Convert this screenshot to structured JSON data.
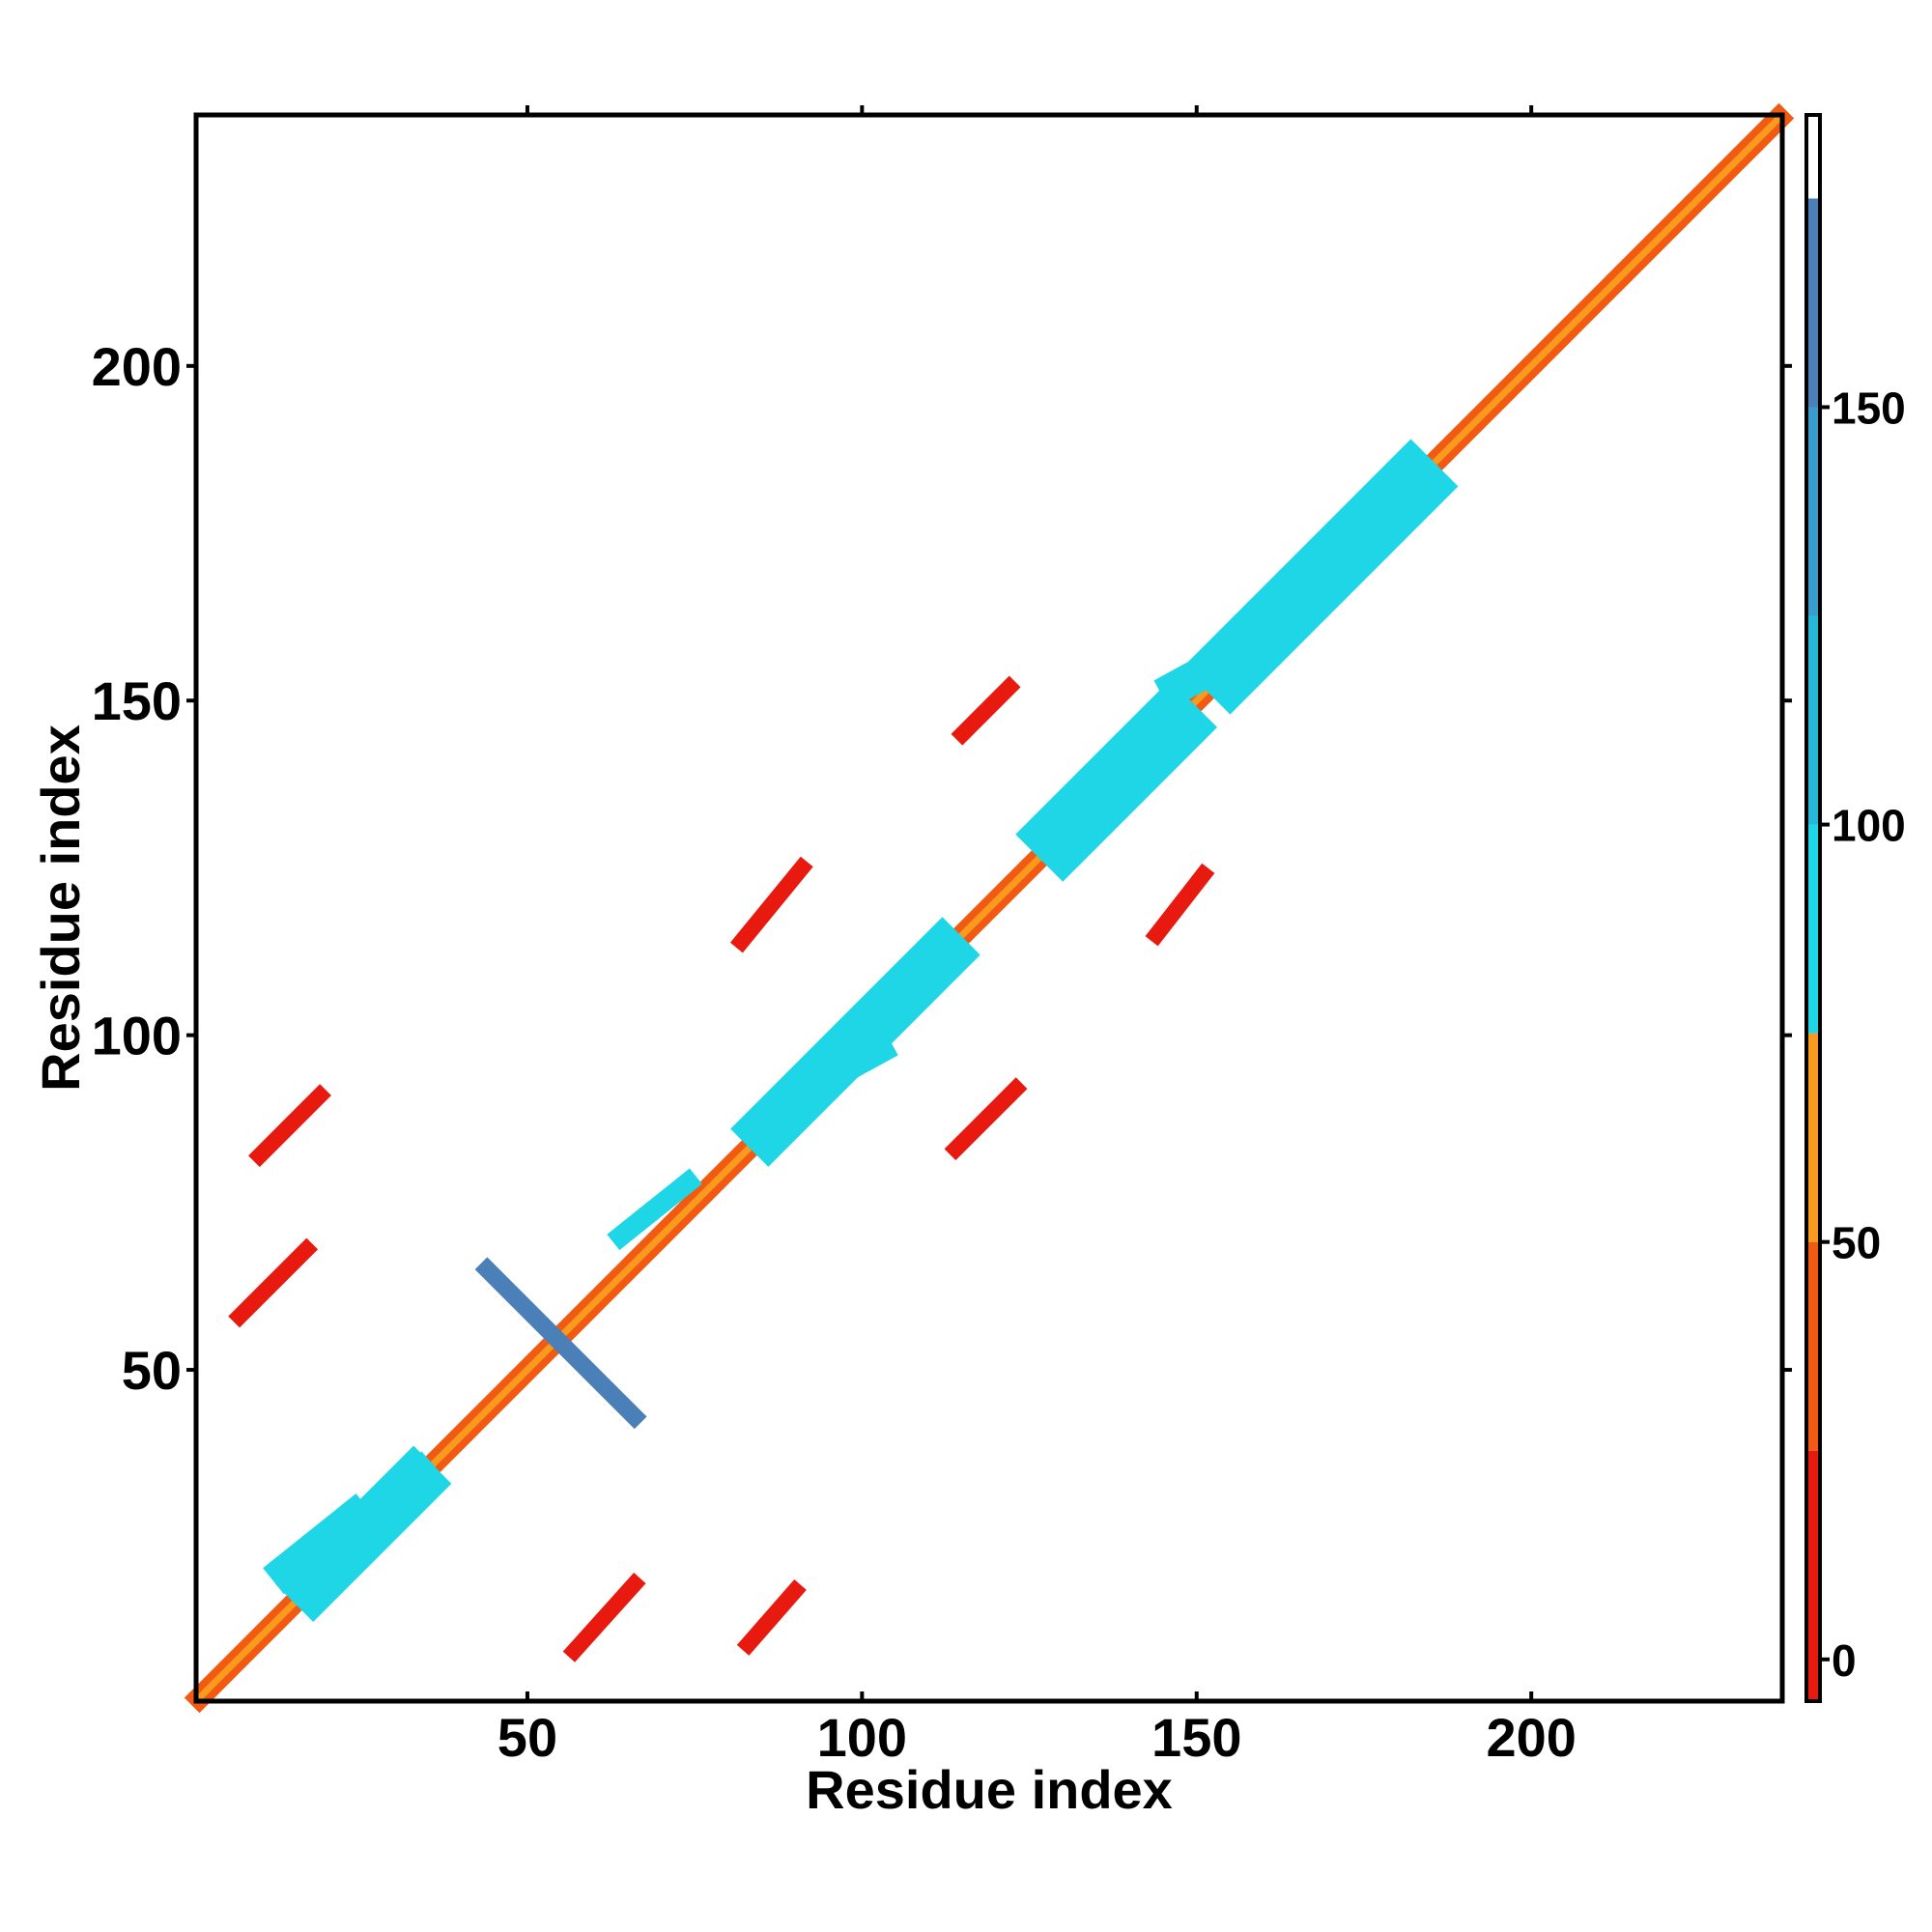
{
  "chart_data": {
    "type": "heatmap",
    "title": "",
    "xlabel": "Residue index",
    "ylabel": "Residue index",
    "xlim": [
      1,
      237
    ],
    "ylim": [
      1,
      237
    ],
    "x_ticks": [
      50,
      100,
      150,
      200
    ],
    "y_ticks": [
      50,
      100,
      150,
      200
    ],
    "x_tick_labels": [
      "50",
      "100",
      "150",
      "200"
    ],
    "y_tick_labels": [
      "50",
      "100",
      "150",
      "200"
    ],
    "grid": false,
    "legend": "none",
    "colorbar": {
      "position": "right",
      "range": [
        -5,
        185
      ],
      "ticks": [
        0,
        50,
        100,
        150
      ],
      "tick_labels": [
        "0",
        "50",
        "100",
        "150"
      ],
      "bands": [
        {
          "from": -5,
          "to": 25,
          "color": "#e8190e"
        },
        {
          "from": 25,
          "to": 50,
          "color": "#f05a12"
        },
        {
          "from": 50,
          "to": 75,
          "color": "#f79a1e"
        },
        {
          "from": 75,
          "to": 100,
          "color": "#1ed6e6"
        },
        {
          "from": 100,
          "to": 125,
          "color": "#25b8d8"
        },
        {
          "from": 125,
          "to": 150,
          "color": "#3a9ccc"
        },
        {
          "from": 150,
          "to": 175,
          "color": "#4a7fb8"
        },
        {
          "from": 175,
          "to": 185,
          "color": "#ffffff"
        }
      ]
    },
    "series": [
      {
        "start": [
          1,
          1
        ],
        "end": [
          237,
          237
        ],
        "half_width": 1.6,
        "value": 30
      },
      {
        "start": [
          1,
          1
        ],
        "end": [
          237,
          237
        ],
        "half_width": 0.5,
        "value": 60
      },
      {
        "start": [
          18,
          18
        ],
        "end": [
          33,
          33
        ],
        "half_width": 4,
        "value": 95
      },
      {
        "start": [
          86,
          86
        ],
        "end": [
          112,
          112
        ],
        "half_width": 4,
        "value": 95
      },
      {
        "start": [
          130,
          130
        ],
        "end": [
          146,
          146
        ],
        "half_width": 5,
        "value": 95
      },
      {
        "start": [
          155,
          155
        ],
        "end": [
          182,
          182
        ],
        "half_width": 5,
        "value": 95
      },
      {
        "start": [
          44,
          65
        ],
        "end": [
          66,
          43
        ],
        "half_width": 1.3,
        "value": 160
      },
      {
        "start": [
          7,
          58
        ],
        "end": [
          17,
          68
        ],
        "half_width": 1.2,
        "value": 20
      },
      {
        "start": [
          10,
          82
        ],
        "end": [
          19,
          91
        ],
        "half_width": 1.2,
        "value": 20
      },
      {
        "start": [
          57,
          8
        ],
        "end": [
          66,
          18
        ],
        "half_width": 1.2,
        "value": 20
      },
      {
        "start": [
          83,
          9
        ],
        "end": [
          90,
          17
        ],
        "half_width": 1.2,
        "value": 20
      },
      {
        "start": [
          82,
          114
        ],
        "end": [
          91,
          125
        ],
        "half_width": 1.2,
        "value": 20
      },
      {
        "start": [
          114,
          83
        ],
        "end": [
          123,
          92
        ],
        "half_width": 1.2,
        "value": 20
      },
      {
        "start": [
          115,
          145
        ],
        "end": [
          122,
          152
        ],
        "half_width": 1.2,
        "value": 20
      },
      {
        "start": [
          144,
          115
        ],
        "end": [
          151,
          124
        ],
        "half_width": 1.2,
        "value": 20
      },
      {
        "start": [
          91,
          92
        ],
        "end": [
          102,
          98
        ],
        "half_width": 2.5,
        "value": 95
      },
      {
        "start": [
          147,
          152
        ],
        "end": [
          158,
          158
        ],
        "half_width": 2.5,
        "value": 95
      },
      {
        "start": [
          136,
          138
        ],
        "end": [
          146,
          148
        ],
        "half_width": 2.5,
        "value": 95
      },
      {
        "start": [
          14,
          20
        ],
        "end": [
          24,
          28
        ],
        "half_width": 2.5,
        "value": 95
      },
      {
        "start": [
          64,
          70
        ],
        "end": [
          74,
          78
        ],
        "half_width": 1.5,
        "value": 95
      },
      {
        "start": [
          26,
          28
        ],
        "end": [
          34,
          35
        ],
        "half_width": 2,
        "value": 95
      }
    ]
  }
}
